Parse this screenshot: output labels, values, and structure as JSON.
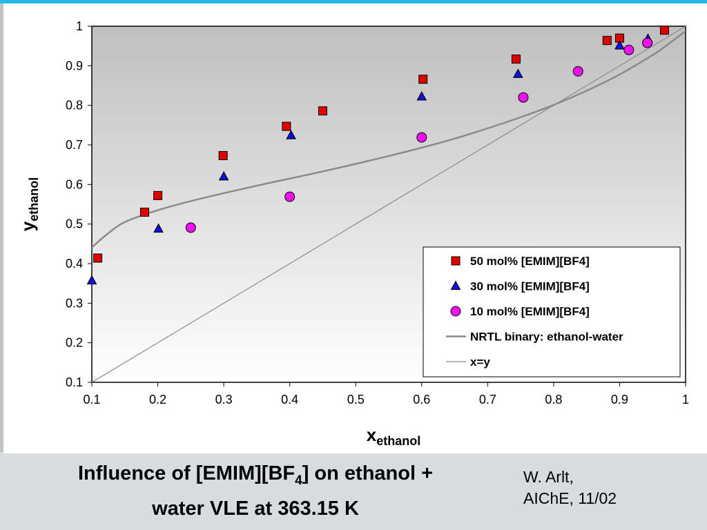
{
  "chart_data": {
    "type": "scatter",
    "xlabel_main": "x",
    "xlabel_sub": "ethanol",
    "ylabel_main": "y",
    "ylabel_sub": "ethanol",
    "xlim": [
      0.1,
      1
    ],
    "ylim": [
      0.1,
      1
    ],
    "x_ticks": [
      "0.1",
      "0.2",
      "0.3",
      "0.4",
      "0.5",
      "0.6",
      "0.7",
      "0.8",
      "0.9",
      "1"
    ],
    "y_ticks": [
      "0.1",
      "0.2",
      "0.3",
      "0.4",
      "0.5",
      "0.6",
      "0.7",
      "0.8",
      "0.9",
      "1"
    ],
    "legend_position": "lower-right",
    "series": [
      {
        "name": "50 mol% [EMIM][BF4]",
        "marker": "square",
        "color": "#e00000",
        "points": [
          [
            0.109,
            0.414
          ],
          [
            0.18,
            0.53
          ],
          [
            0.2,
            0.572
          ],
          [
            0.299,
            0.673
          ],
          [
            0.395,
            0.747
          ],
          [
            0.45,
            0.786
          ],
          [
            0.602,
            0.866
          ],
          [
            0.743,
            0.917
          ],
          [
            0.881,
            0.964
          ],
          [
            0.9,
            0.97
          ],
          [
            0.968,
            0.99
          ]
        ]
      },
      {
        "name": "30 mol% [EMIM][BF4]",
        "marker": "triangle",
        "color": "#1010d8",
        "points": [
          [
            0.1,
            0.357
          ],
          [
            0.201,
            0.488
          ],
          [
            0.3,
            0.62
          ],
          [
            0.402,
            0.724
          ],
          [
            0.6,
            0.822
          ],
          [
            0.746,
            0.879
          ],
          [
            0.9,
            0.951
          ],
          [
            0.943,
            0.968
          ]
        ]
      },
      {
        "name": "10 mol% [EMIM][BF4]",
        "marker": "circle",
        "color": "#ee10ee",
        "points": [
          [
            0.25,
            0.491
          ],
          [
            0.4,
            0.569
          ],
          [
            0.6,
            0.719
          ],
          [
            0.754,
            0.82
          ],
          [
            0.837,
            0.886
          ],
          [
            0.914,
            0.94
          ],
          [
            0.942,
            0.958
          ]
        ]
      },
      {
        "name": "NRTL binary: ethanol-water",
        "marker": "line",
        "color": "#8a8a8a",
        "points": [
          [
            0.093,
            0.43
          ],
          [
            0.12,
            0.47
          ],
          [
            0.15,
            0.505
          ],
          [
            0.2,
            0.535
          ],
          [
            0.25,
            0.558
          ],
          [
            0.3,
            0.578
          ],
          [
            0.35,
            0.597
          ],
          [
            0.4,
            0.615
          ],
          [
            0.45,
            0.633
          ],
          [
            0.5,
            0.652
          ],
          [
            0.55,
            0.672
          ],
          [
            0.6,
            0.693
          ],
          [
            0.65,
            0.716
          ],
          [
            0.7,
            0.742
          ],
          [
            0.75,
            0.77
          ],
          [
            0.8,
            0.801
          ],
          [
            0.85,
            0.837
          ],
          [
            0.9,
            0.878
          ],
          [
            0.95,
            0.927
          ],
          [
            0.97,
            0.95
          ],
          [
            1.0,
            0.988
          ]
        ]
      },
      {
        "name": "x=y",
        "marker": "line",
        "color": "#8a8a8a",
        "points": [
          [
            0.1,
            0.1
          ],
          [
            1.0,
            1.0
          ]
        ]
      }
    ]
  },
  "caption": {
    "line1_part1": "Influence of [EMIM][BF",
    "line1_sub": "4",
    "line1_part2": "] on ethanol +",
    "line2": "water VLE at 363.15 K"
  },
  "credit": {
    "line1": "W. Arlt,",
    "line2": "AIChE, 11/02"
  },
  "colors": {
    "accent_bar": "#29b6e8",
    "plot_gradient_top": "#bfbfbf",
    "plot_gradient_bottom": "#ffffff"
  }
}
